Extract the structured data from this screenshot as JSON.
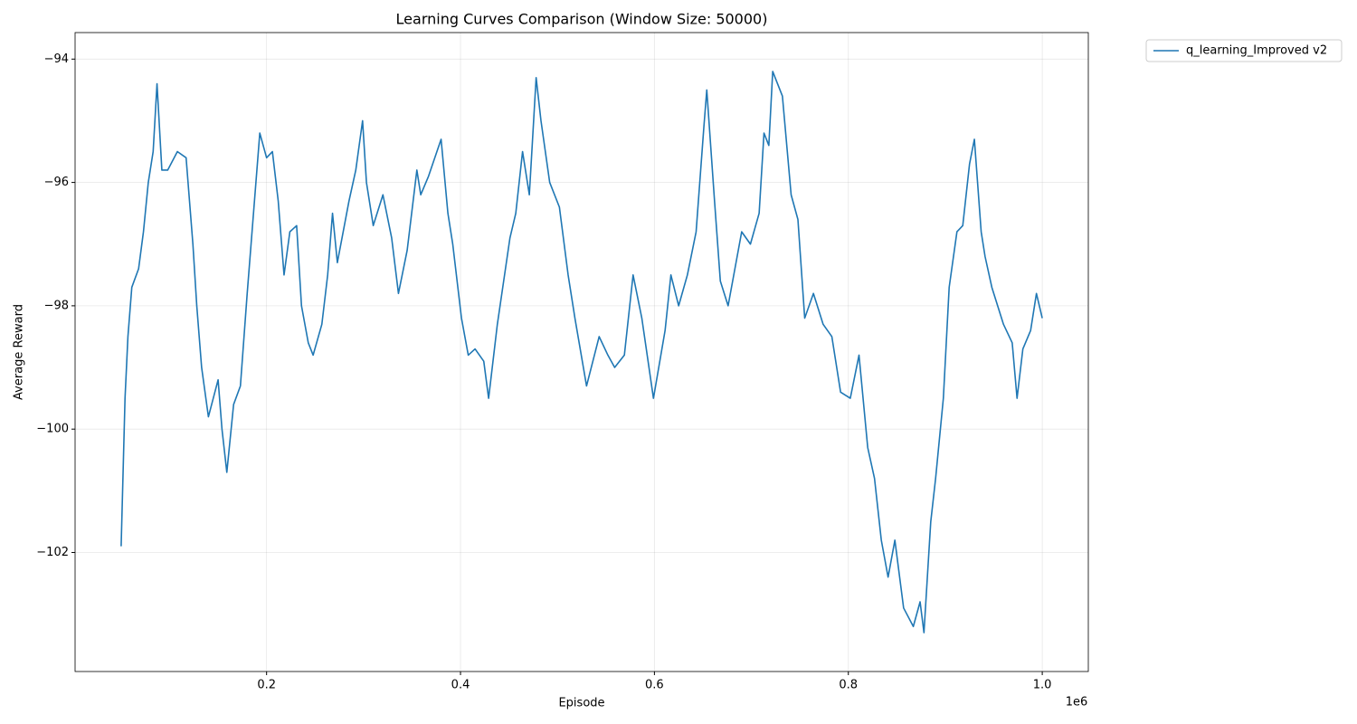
{
  "chart_data": {
    "type": "line",
    "title": "Learning Curves Comparison (Window Size: 50000)",
    "x_label": "Episode",
    "y_label": "Average Reward",
    "x_offset_label": "1e6",
    "x": [
      50000,
      54000,
      57000,
      61000,
      68000,
      73000,
      78000,
      83000,
      87000,
      92000,
      98000,
      108000,
      117000,
      124000,
      128000,
      133000,
      140000,
      150000,
      154000,
      159000,
      166000,
      173000,
      180000,
      184000,
      189000,
      193000,
      200000,
      206000,
      212000,
      218000,
      224000,
      231000,
      236000,
      243000,
      248000,
      257000,
      263000,
      268000,
      273000,
      285000,
      292000,
      299000,
      303000,
      310000,
      320000,
      329000,
      336000,
      345000,
      355000,
      359000,
      367000,
      380000,
      387000,
      392000,
      401000,
      408000,
      415000,
      424000,
      429000,
      438000,
      451000,
      457000,
      464000,
      471000,
      478000,
      483000,
      492000,
      502000,
      511000,
      518000,
      530000,
      543000,
      552000,
      559000,
      569000,
      578000,
      587000,
      599000,
      611000,
      617000,
      625000,
      634000,
      643000,
      651000,
      654000,
      662000,
      668000,
      676000,
      690000,
      699000,
      708000,
      713000,
      718000,
      722000,
      732000,
      741000,
      748000,
      755000,
      764000,
      774000,
      783000,
      792000,
      802000,
      811000,
      820000,
      827000,
      834000,
      841000,
      848000,
      857000,
      867000,
      874000,
      878000,
      885000,
      890000,
      898000,
      904000,
      912000,
      918000,
      925000,
      930000,
      937000,
      941000,
      948000,
      960000,
      969000,
      974000,
      980000,
      988000,
      994000,
      1000000
    ],
    "series": [
      {
        "name": "q_learning_Improved v2",
        "color": "#1f77b4",
        "values": [
          -101.9,
          -99.5,
          -98.5,
          -97.7,
          -97.4,
          -96.8,
          -96,
          -95.5,
          -94.4,
          -95.8,
          -95.8,
          -95.5,
          -95.6,
          -97,
          -98,
          -99,
          -99.8,
          -99.2,
          -100,
          -100.7,
          -99.6,
          -99.3,
          -97.8,
          -97,
          -96,
          -95.2,
          -95.6,
          -95.5,
          -96.3,
          -97.5,
          -96.8,
          -96.7,
          -98,
          -98.6,
          -98.8,
          -98.3,
          -97.5,
          -96.5,
          -97.3,
          -96.3,
          -95.8,
          -95,
          -96,
          -96.7,
          -96.2,
          -96.9,
          -97.8,
          -97.1,
          -95.8,
          -96.2,
          -95.9,
          -95.3,
          -96.5,
          -97,
          -98.2,
          -98.8,
          -98.7,
          -98.9,
          -99.5,
          -98.3,
          -96.9,
          -96.5,
          -95.5,
          -96.2,
          -94.3,
          -95,
          -96,
          -96.4,
          -97.5,
          -98.2,
          -99.3,
          -98.5,
          -98.8,
          -99,
          -98.8,
          -97.5,
          -98.2,
          -99.5,
          -98.4,
          -97.5,
          -98,
          -97.5,
          -96.8,
          -95.1,
          -94.5,
          -96.3,
          -97.6,
          -98,
          -96.8,
          -97,
          -96.5,
          -95.2,
          -95.4,
          -94.2,
          -94.6,
          -96.2,
          -96.6,
          -98.2,
          -97.8,
          -98.3,
          -98.5,
          -99.4,
          -99.5,
          -98.8,
          -100.3,
          -100.8,
          -101.8,
          -102.4,
          -101.8,
          -102.9,
          -103.2,
          -102.8,
          -103.3,
          -101.5,
          -100.8,
          -99.5,
          -97.7,
          -96.8,
          -96.7,
          -95.7,
          -95.3,
          -96.8,
          -97.2,
          -97.7,
          -98.3,
          -98.6,
          -99.5,
          -98.7,
          -98.4,
          -97.8,
          -98.2
        ]
      }
    ],
    "xlim": [
      2500,
      1047500
    ],
    "ylim": [
      -103.93,
      -93.57
    ],
    "xticks": [
      {
        "value": 200000,
        "label": "0.2"
      },
      {
        "value": 400000,
        "label": "0.4"
      },
      {
        "value": 600000,
        "label": "0.6"
      },
      {
        "value": 800000,
        "label": "0.8"
      },
      {
        "value": 1000000,
        "label": "1.0"
      }
    ],
    "yticks": [
      {
        "value": -102,
        "label": "−102"
      },
      {
        "value": -100,
        "label": "−100"
      },
      {
        "value": -98,
        "label": "−98"
      },
      {
        "value": -96,
        "label": "−96"
      },
      {
        "value": -94,
        "label": "−94"
      }
    ],
    "grid": true,
    "legend": "outside-upper-right"
  }
}
